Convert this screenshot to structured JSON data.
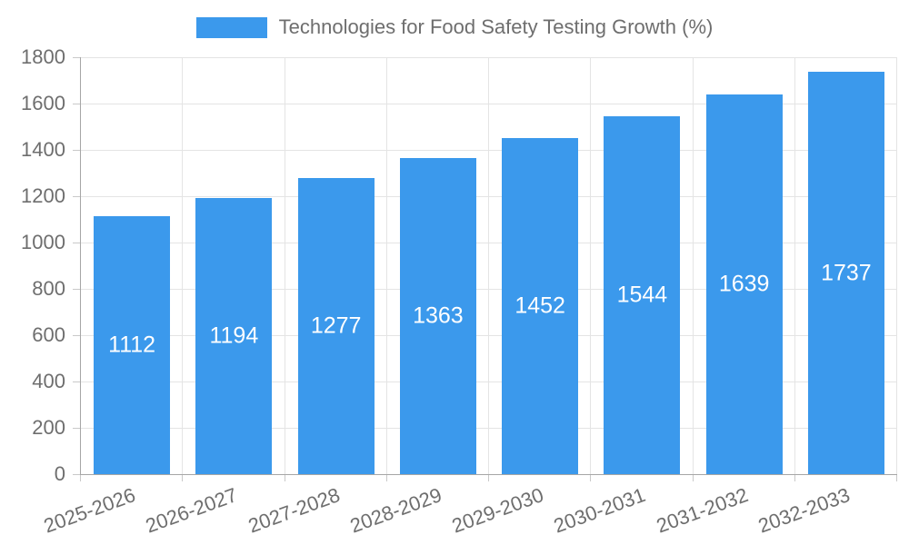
{
  "chart_data": {
    "type": "bar",
    "title": "Technologies for Food Safety Testing Growth (%)",
    "categories": [
      "2025-2026",
      "2026-2027",
      "2027-2028",
      "2028-2029",
      "2029-2030",
      "2030-2031",
      "2031-2032",
      "2032-2033"
    ],
    "values": [
      1112,
      1194,
      1277,
      1363,
      1452,
      1544,
      1639,
      1737
    ],
    "series_name": "Technologies for Food Safety Testing Growth (%)",
    "xlabel": "",
    "ylabel": "",
    "ylim": [
      0,
      1800
    ],
    "ytick_step": 200,
    "grid": true,
    "legend_position": "top-center",
    "value_label_position": "inside-center"
  },
  "colors": {
    "bar": "#3b99ec",
    "grid": "#e4e4e4",
    "axis": "#a6a6a6",
    "tick": "#c9c9c9",
    "text": "#6e6e6e",
    "value_text": "#ffffff",
    "background": "#ffffff"
  }
}
